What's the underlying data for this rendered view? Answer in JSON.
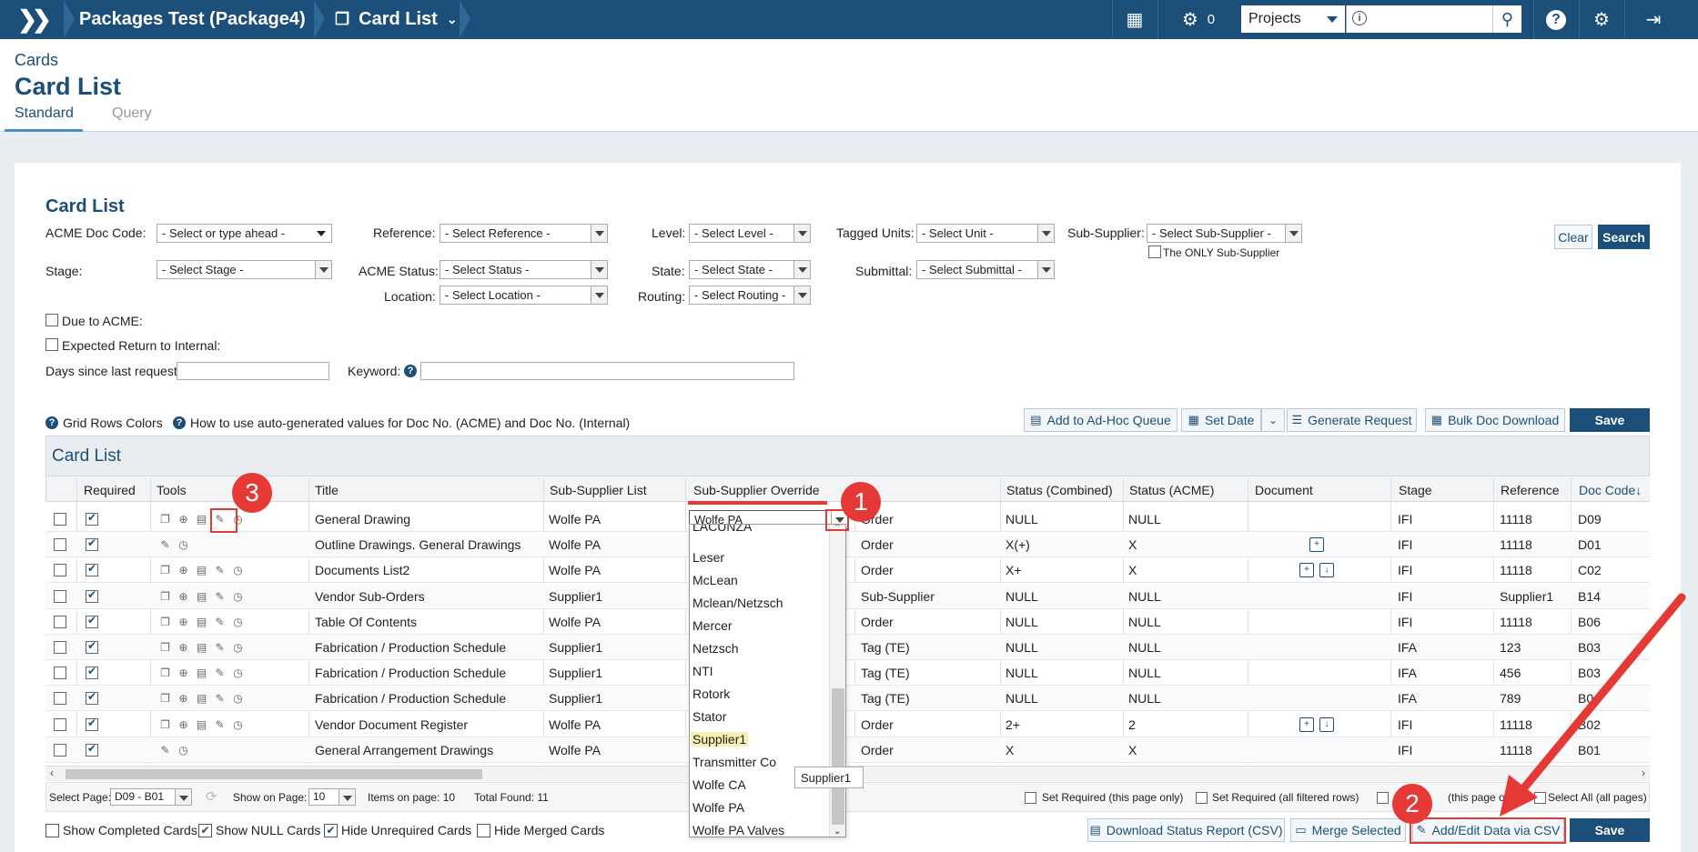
{
  "topbar": {
    "project_name": "Packages Test (Package4)",
    "page_name": "Card List",
    "gears_count": "0",
    "projects_label": "Projects"
  },
  "page": {
    "breadcrumb": "Cards",
    "title": "Card List",
    "tabs": [
      "Standard",
      "Query"
    ]
  },
  "filters": {
    "section_title": "Card List",
    "acme_doc_code_label": "ACME Doc Code:",
    "acme_doc_code_value": "- Select or type ahead -",
    "reference_label": "Reference:",
    "reference_value": "- Select Reference -",
    "level_label": "Level:",
    "level_value": "- Select Level -",
    "tagged_units_label": "Tagged Units:",
    "tagged_units_value": "- Select Unit -",
    "sub_supplier_label": "Sub-Supplier:",
    "sub_supplier_value": "- Select Sub-Supplier -",
    "only_sub_supplier_label": "The ONLY Sub-Supplier",
    "stage_label": "Stage:",
    "stage_value": "- Select Stage -",
    "acme_status_label": "ACME Status:",
    "acme_status_value": "- Select Status -",
    "state_label": "State:",
    "state_value": "- Select State -",
    "submittal_label": "Submittal:",
    "submittal_value": "- Select Submittal -",
    "location_label": "Location:",
    "location_value": "- Select Location -",
    "routing_label": "Routing:",
    "routing_value": "- Select Routing -",
    "due_to_acme_label": "Due to ACME:",
    "expected_return_label": "Expected Return to Internal:",
    "days_since_label": "Days since last request:",
    "keyword_label": "Keyword:",
    "clear_label": "Clear",
    "search_label": "Search"
  },
  "help": {
    "grid_rows_colors": "Grid Rows Colors",
    "auto_values": "How to use auto-generated values for Doc No. (ACME) and Doc No. (Internal)"
  },
  "toolbar": {
    "add_adhoc": "Add to Ad-Hoc Queue",
    "set_date": "Set Date",
    "generate_request": "Generate Request",
    "bulk_doc_download": "Bulk Doc Download",
    "save": "Save"
  },
  "grid": {
    "title": "Card List",
    "columns": [
      "Required",
      "Tools",
      "Title",
      "Sub-Supplier List",
      "Sub-Supplier Override",
      "Status (Combined)",
      "Status (ACME)",
      "Document",
      "Stage",
      "Reference",
      "Doc Code↓"
    ],
    "rows": [
      {
        "title": "General Drawing",
        "sub_list": "Wolfe PA",
        "override": "Wolfe PA",
        "level": "Order",
        "status_combined": "NULL",
        "status_acme": "NULL",
        "stage": "IFI",
        "reference": "11118",
        "doc_code": "D09",
        "tools": "full",
        "docs": 0
      },
      {
        "title": "Outline Drawings. General Drawings",
        "sub_list": "Wolfe PA",
        "override": "",
        "level": "Order",
        "status_combined": "X(+)",
        "status_acme": "X",
        "stage": "IFI",
        "reference": "11118",
        "doc_code": "D01",
        "tools": "short",
        "docs": 1
      },
      {
        "title": "Documents List2",
        "sub_list": "Wolfe PA",
        "override": "",
        "level": "Order",
        "status_combined": "X+",
        "status_acme": "X",
        "stage": "IFI",
        "reference": "11118",
        "doc_code": "C02",
        "tools": "full",
        "docs": 2
      },
      {
        "title": "Vendor Sub-Orders",
        "sub_list": "Supplier1",
        "override": "",
        "level": "Sub-Supplier",
        "status_combined": "NULL",
        "status_acme": "NULL",
        "stage": "IFI",
        "reference": "Supplier1",
        "doc_code": "B14",
        "tools": "full",
        "docs": 0
      },
      {
        "title": "Table Of Contents",
        "sub_list": "Wolfe PA",
        "override": "",
        "level": "Order",
        "status_combined": "NULL",
        "status_acme": "NULL",
        "stage": "IFI",
        "reference": "11118",
        "doc_code": "B06",
        "tools": "full",
        "docs": 0
      },
      {
        "title": "Fabrication / Production Schedule",
        "sub_list": "Supplier1",
        "override": "",
        "level": "Tag (TE)",
        "status_combined": "NULL",
        "status_acme": "NULL",
        "stage": "IFA",
        "reference": "123",
        "doc_code": "B03",
        "tools": "full",
        "docs": 0
      },
      {
        "title": "Fabrication / Production Schedule",
        "sub_list": "Supplier1",
        "override": "",
        "level": "Tag (TE)",
        "status_combined": "NULL",
        "status_acme": "NULL",
        "stage": "IFA",
        "reference": "456",
        "doc_code": "B03",
        "tools": "full",
        "docs": 0
      },
      {
        "title": "Fabrication / Production Schedule",
        "sub_list": "Supplier1",
        "override": "",
        "level": "Tag (TE)",
        "status_combined": "NULL",
        "status_acme": "NULL",
        "stage": "IFA",
        "reference": "789",
        "doc_code": "B0",
        "tools": "full",
        "docs": 0
      },
      {
        "title": "Vendor Document Register",
        "sub_list": "Wolfe PA",
        "override": "",
        "level": "Order",
        "status_combined": "2+",
        "status_acme": "2",
        "stage": "IFI",
        "reference": "11118",
        "doc_code": "B02",
        "tools": "full",
        "docs": 2
      },
      {
        "title": "General Arrangement Drawings",
        "sub_list": "Wolfe PA",
        "override": "",
        "level": "Order",
        "status_combined": "X",
        "status_acme": "X",
        "stage": "IFI",
        "reference": "11118",
        "doc_code": "B01",
        "tools": "short",
        "docs": 0
      }
    ]
  },
  "dropdown": {
    "options": [
      "LACUNZA",
      "Leser",
      "McLean",
      "Mclean/Netzsch",
      "Mercer",
      "Netzsch",
      "NTI",
      "Rotork",
      "Stator",
      "Supplier1",
      "Transmitter Co",
      "Wolfe CA",
      "Wolfe PA",
      "Wolfe PA Valves"
    ],
    "highlighted": "Supplier1",
    "tooltip": "Supplier1"
  },
  "pager": {
    "select_page_label": "Select Page:",
    "select_page_value": "D09 - B01",
    "show_on_page_label": "Show on Page:",
    "show_on_page_value": "10",
    "items_on_page": "Items on page: 10",
    "total_found": "Total Found: 11",
    "set_required_page": "Set Required (this page only)",
    "set_required_all": "Set Required (all filtered rows)",
    "select_page_only": "(this page onl",
    "select_all": "Select All (all pages)"
  },
  "footer": {
    "show_completed": "Show Completed Cards",
    "show_null": "Show NULL Cards",
    "hide_unrequired": "Hide Unrequired Cards",
    "hide_merged": "Hide Merged Cards",
    "download_status": "Download Status Report (CSV)",
    "merge_selected": "Merge Selected",
    "add_edit_csv": "Add/Edit Data via CSV",
    "save": "Save"
  },
  "annotations": [
    "1",
    "2",
    "3"
  ],
  "colors": {
    "brand": "#1b4f7a",
    "annotation": "#e53935"
  }
}
